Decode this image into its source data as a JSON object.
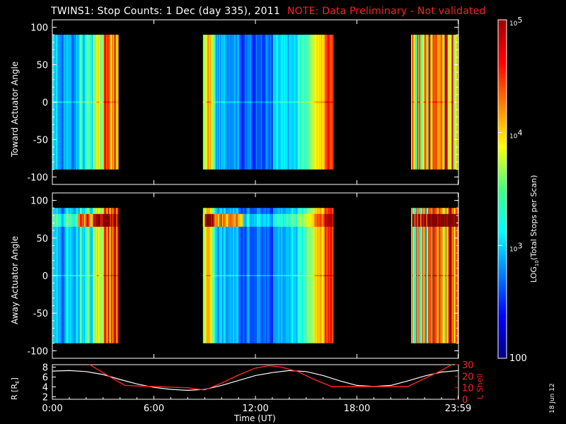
{
  "title": "TWINS1: Stop Counts:  1 Dec (day 335), 2011",
  "note": "NOTE: Data Preliminary - Not validated",
  "side_stamp": "18 Jun 12",
  "colors": {
    "background": "#000000",
    "text": "#ffffff",
    "note": "#ff2020",
    "lshell": "#ff2020",
    "r": "#ffffff"
  },
  "chart_data": [
    {
      "type": "heatmap",
      "name": "toward",
      "ylabel": "Toward Actuator Angle",
      "ylim": [
        -110,
        110
      ],
      "yticks": [
        -100,
        -50,
        0,
        50,
        100
      ],
      "y_data_range": [
        -90,
        90
      ],
      "xlim": [
        0,
        24
      ],
      "data_blocks_hours": [
        [
          0,
          3.9
        ],
        [
          8.9,
          16.6
        ],
        [
          21.2,
          24
        ]
      ],
      "colorscale": "log10",
      "zlim": [
        100,
        100000
      ]
    },
    {
      "type": "heatmap",
      "name": "away",
      "ylabel": "Away Actuator Angle",
      "ylim": [
        -110,
        110
      ],
      "yticks": [
        -100,
        -50,
        0,
        50,
        100
      ],
      "y_data_range": [
        -90,
        90
      ],
      "xlim": [
        0,
        24
      ],
      "data_blocks_hours": [
        [
          0,
          3.9
        ],
        [
          8.9,
          16.6
        ],
        [
          21.2,
          24
        ]
      ],
      "colorscale": "log10",
      "zlim": [
        100,
        100000
      ]
    },
    {
      "type": "line",
      "name": "ephemeris",
      "xlabel": "Time (UT)",
      "xticks": [
        "0:00",
        "6:00",
        "12:00",
        "18:00",
        "23:59"
      ],
      "xtick_hours": [
        0,
        6,
        12,
        18,
        23.98
      ],
      "left_axis": {
        "label": "R [RE]",
        "label_main": "R [R",
        "label_sub": "E",
        "label_end": "]",
        "ticks": [
          2,
          4,
          6,
          8
        ],
        "ylim": [
          1.5,
          8.5
        ]
      },
      "right_axis": {
        "label": "L Shell",
        "ticks": [
          0,
          10,
          20,
          30
        ],
        "ylim": [
          0,
          30
        ]
      },
      "series": [
        {
          "name": "R [RE]",
          "x": [
            0,
            1,
            2,
            3,
            4,
            5,
            6,
            7,
            8,
            9,
            10,
            11,
            12,
            13,
            14,
            15,
            16,
            17,
            18,
            19,
            20,
            21,
            22,
            23,
            24
          ],
          "values": [
            7.2,
            7.3,
            7.1,
            6.5,
            5.5,
            4.6,
            3.9,
            3.5,
            3.3,
            3.5,
            4.3,
            5.3,
            6.3,
            6.9,
            7.3,
            7.1,
            6.3,
            5.2,
            4.3,
            4.1,
            4.3,
            5.2,
            6.2,
            7.0,
            7.3
          ]
        },
        {
          "name": "L Shell",
          "x": [
            2.2,
            3,
            3.8,
            4.3,
            6,
            8,
            9,
            10,
            11,
            12,
            12.8,
            13.5,
            14.5,
            15.5,
            16.5,
            18,
            20,
            21,
            22,
            23,
            23.6
          ],
          "values": [
            30,
            23,
            16,
            12,
            11,
            10,
            8,
            14,
            21,
            27,
            29,
            28,
            24,
            17,
            11,
            11,
            11,
            11,
            18,
            25,
            30
          ]
        }
      ]
    }
  ],
  "colorbar": {
    "label_main": "LOG",
    "label_sub": "10",
    "label_rest": "(Total Stops per Scan)",
    "tick_labels": [
      {
        "value": 100000,
        "base": "10",
        "exp": "5"
      },
      {
        "value": 10000,
        "base": "10",
        "exp": "4"
      },
      {
        "value": 1000,
        "base": "10",
        "exp": "3"
      },
      {
        "value": 100,
        "text": "100"
      }
    ]
  }
}
